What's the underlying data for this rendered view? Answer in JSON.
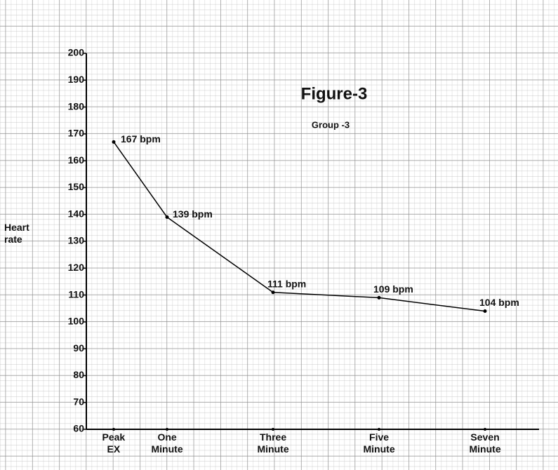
{
  "chart_data": {
    "type": "line",
    "title": "Figure-3",
    "subtitle": "Group -3",
    "y_label": "Heart rate",
    "categories": [
      "Peak EX",
      "One Minute",
      "Three Minute",
      "Five Minute",
      "Seven Minute"
    ],
    "values": [
      167,
      139,
      111,
      109,
      104
    ],
    "value_labels": [
      "167 bpm",
      "139 bpm",
      "111 bpm",
      "109 bpm",
      "104 bpm"
    ],
    "color": "#000000",
    "ylim": [
      60,
      200
    ],
    "yticks": [
      60,
      70,
      80,
      90,
      100,
      110,
      120,
      130,
      140,
      150,
      160,
      170,
      180,
      190,
      200
    ]
  }
}
